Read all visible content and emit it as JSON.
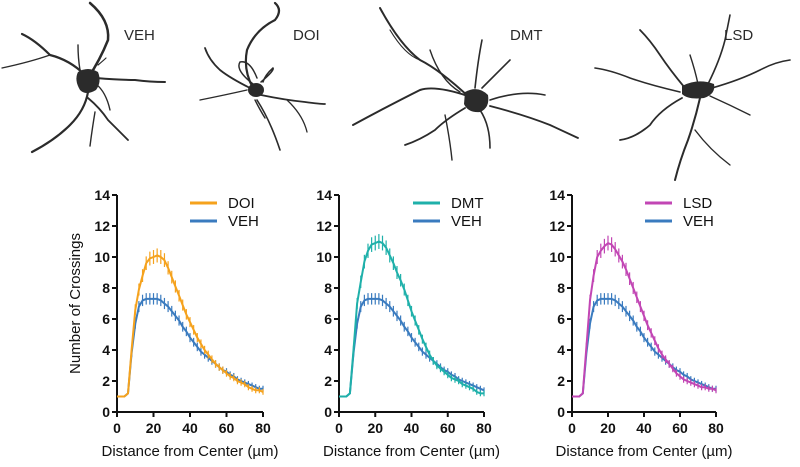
{
  "neurons": [
    {
      "label": "VEH",
      "icon": "neuron-veh-icon"
    },
    {
      "label": "DOI",
      "icon": "neuron-doi-icon"
    },
    {
      "label": "DMT",
      "icon": "neuron-dmt-icon"
    },
    {
      "label": "LSD",
      "icon": "neuron-lsd-icon"
    }
  ],
  "colors": {
    "VEH": "#3a7bbf",
    "DOI": "#f5a21d",
    "DMT": "#1fb0aa",
    "LSD": "#c246b4",
    "axis": "#111111"
  },
  "chart_data": [
    {
      "type": "line",
      "title": "",
      "xlabel": "Distance from Center (µm)",
      "ylabel": "Number of Crossings",
      "xlim": [
        0,
        80
      ],
      "ylim": [
        0,
        14
      ],
      "xticks": [
        0,
        20,
        40,
        60,
        80
      ],
      "yticks": [
        0,
        2,
        4,
        6,
        8,
        10,
        12,
        14
      ],
      "legend": "top-right",
      "x": [
        0,
        2,
        4,
        6,
        8,
        10,
        12,
        14,
        16,
        18,
        20,
        22,
        24,
        26,
        28,
        30,
        32,
        34,
        36,
        38,
        40,
        42,
        44,
        46,
        48,
        50,
        52,
        54,
        56,
        58,
        60,
        62,
        64,
        66,
        68,
        70,
        72,
        74,
        76,
        78,
        80
      ],
      "series": [
        {
          "name": "DOI",
          "color_key": "DOI",
          "values": [
            1.0,
            1.0,
            1.0,
            1.2,
            4.0,
            6.6,
            7.9,
            8.8,
            9.6,
            9.9,
            10.0,
            10.1,
            10.0,
            9.8,
            9.3,
            8.7,
            8.1,
            7.5,
            6.9,
            6.3,
            5.8,
            5.3,
            4.8,
            4.4,
            4.0,
            3.7,
            3.4,
            3.1,
            2.9,
            2.7,
            2.5,
            2.3,
            2.2,
            2.0,
            1.9,
            1.8,
            1.6,
            1.5,
            1.4,
            1.4,
            1.3
          ]
        },
        {
          "name": "VEH",
          "color_key": "VEH",
          "values": [
            1.0,
            1.0,
            1.0,
            1.2,
            3.8,
            5.7,
            6.8,
            7.2,
            7.3,
            7.3,
            7.3,
            7.3,
            7.2,
            7.0,
            6.8,
            6.5,
            6.2,
            5.9,
            5.5,
            5.2,
            4.8,
            4.5,
            4.2,
            3.9,
            3.7,
            3.5,
            3.3,
            3.1,
            2.9,
            2.7,
            2.6,
            2.4,
            2.3,
            2.1,
            2.0,
            1.9,
            1.8,
            1.7,
            1.6,
            1.5,
            1.5
          ]
        }
      ]
    },
    {
      "type": "line",
      "title": "",
      "xlabel": "Distance from Center (µm)",
      "ylabel": "",
      "xlim": [
        0,
        80
      ],
      "ylim": [
        0,
        14
      ],
      "xticks": [
        0,
        20,
        40,
        60,
        80
      ],
      "yticks": [
        0,
        2,
        4,
        6,
        8,
        10,
        12,
        14
      ],
      "legend": "top-right",
      "x": [
        0,
        2,
        4,
        6,
        8,
        10,
        12,
        14,
        16,
        18,
        20,
        22,
        24,
        26,
        28,
        30,
        32,
        34,
        36,
        38,
        40,
        42,
        44,
        46,
        48,
        50,
        52,
        54,
        56,
        58,
        60,
        62,
        64,
        66,
        68,
        70,
        72,
        74,
        76,
        78,
        80
      ],
      "series": [
        {
          "name": "DMT",
          "color_key": "DMT",
          "values": [
            1.0,
            1.0,
            1.0,
            1.2,
            4.0,
            7.0,
            8.4,
            9.7,
            10.4,
            10.8,
            10.9,
            11.0,
            10.9,
            10.6,
            10.1,
            9.6,
            9.0,
            8.5,
            7.9,
            7.2,
            6.5,
            5.9,
            5.3,
            4.7,
            4.2,
            3.7,
            3.3,
            3.0,
            2.8,
            2.6,
            2.4,
            2.2,
            2.1,
            2.0,
            1.8,
            1.7,
            1.6,
            1.5,
            1.3,
            1.2,
            1.2
          ]
        },
        {
          "name": "VEH",
          "color_key": "VEH",
          "values": [
            1.0,
            1.0,
            1.0,
            1.2,
            3.8,
            5.7,
            6.8,
            7.2,
            7.3,
            7.3,
            7.3,
            7.3,
            7.2,
            7.0,
            6.8,
            6.5,
            6.2,
            5.9,
            5.5,
            5.2,
            4.8,
            4.5,
            4.2,
            3.9,
            3.7,
            3.5,
            3.3,
            3.1,
            2.9,
            2.7,
            2.6,
            2.4,
            2.3,
            2.1,
            2.0,
            1.9,
            1.8,
            1.7,
            1.6,
            1.5,
            1.4
          ]
        }
      ]
    },
    {
      "type": "line",
      "title": "",
      "xlabel": "Distance from Center (µm)",
      "ylabel": "",
      "xlim": [
        0,
        80
      ],
      "ylim": [
        0,
        14
      ],
      "xticks": [
        0,
        20,
        40,
        60,
        80
      ],
      "yticks": [
        0,
        2,
        4,
        6,
        8,
        10,
        12,
        14
      ],
      "legend": "top-right",
      "x": [
        0,
        2,
        4,
        6,
        8,
        10,
        12,
        14,
        16,
        18,
        20,
        22,
        24,
        26,
        28,
        30,
        32,
        34,
        36,
        38,
        40,
        42,
        44,
        46,
        48,
        50,
        52,
        54,
        56,
        58,
        60,
        62,
        64,
        66,
        68,
        70,
        72,
        74,
        76,
        78,
        80
      ],
      "series": [
        {
          "name": "LSD",
          "color_key": "LSD",
          "values": [
            1.0,
            1.0,
            1.0,
            1.2,
            4.2,
            7.2,
            8.8,
            10.0,
            10.4,
            10.7,
            10.9,
            10.8,
            10.5,
            10.1,
            9.7,
            9.2,
            8.6,
            8.0,
            7.4,
            6.8,
            6.2,
            5.6,
            5.1,
            4.6,
            4.1,
            3.7,
            3.4,
            3.1,
            2.8,
            2.5,
            2.3,
            2.1,
            2.0,
            1.9,
            1.8,
            1.7,
            1.6,
            1.6,
            1.5,
            1.5,
            1.4
          ]
        },
        {
          "name": "VEH",
          "color_key": "VEH",
          "values": [
            1.0,
            1.0,
            1.0,
            1.2,
            3.8,
            5.7,
            6.8,
            7.2,
            7.3,
            7.3,
            7.3,
            7.3,
            7.2,
            7.0,
            6.8,
            6.5,
            6.2,
            5.9,
            5.5,
            5.2,
            4.8,
            4.5,
            4.2,
            3.9,
            3.7,
            3.5,
            3.3,
            3.1,
            2.9,
            2.7,
            2.6,
            2.4,
            2.3,
            2.1,
            2.0,
            1.9,
            1.8,
            1.7,
            1.6,
            1.5,
            1.5
          ]
        }
      ]
    }
  ]
}
